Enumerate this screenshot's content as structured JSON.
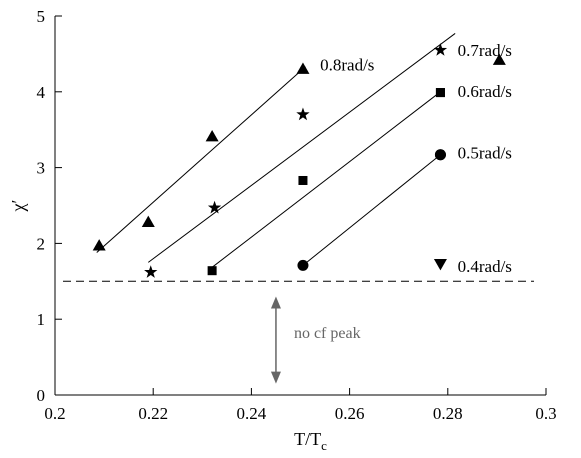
{
  "chart_data": {
    "type": "scatter",
    "xlabel_main": "T/T",
    "xlabel_sub": "c",
    "ylabel": "χ′",
    "xlim": [
      0.2,
      0.3
    ],
    "ylim": [
      0,
      5
    ],
    "xticks": [
      0.2,
      0.22,
      0.24,
      0.26,
      0.28,
      0.3
    ],
    "yticks": [
      0,
      1,
      2,
      3,
      4,
      5
    ],
    "xtick_labels": [
      "0.2",
      "0.22",
      "0.24",
      "0.26",
      "0.28",
      "0.3"
    ],
    "ytick_labels": [
      "0",
      "1",
      "2",
      "3",
      "4",
      "5"
    ],
    "grid": false,
    "threshold_line": {
      "y": 1.5,
      "style": "dashed"
    },
    "annotation": {
      "text": "no cf peak",
      "arrow_x": 0.245,
      "arrow_from_y": 1.3,
      "arrow_to_y": 0.15
    },
    "series": [
      {
        "name": "0.8rad/s",
        "marker": "triangle-up",
        "points": [
          [
            0.209,
            1.97
          ],
          [
            0.219,
            2.28
          ],
          [
            0.232,
            3.41
          ],
          [
            0.2505,
            4.3
          ]
        ],
        "fit": [
          [
            0.2085,
            1.88
          ],
          [
            0.251,
            4.33
          ]
        ],
        "legend_at": [
          0.2905,
          4.42
        ],
        "label_at": [
          0.254,
          4.36
        ]
      },
      {
        "name": "0.7rad/s",
        "marker": "star",
        "points": [
          [
            0.2195,
            1.62
          ],
          [
            0.2325,
            2.47
          ],
          [
            0.2505,
            3.7
          ]
        ],
        "fit": [
          [
            0.219,
            1.75
          ],
          [
            0.2815,
            4.77
          ]
        ],
        "legend_at": [
          0.2785,
          4.55
        ],
        "label_at": [
          0.282,
          4.55
        ]
      },
      {
        "name": "0.6rad/s",
        "marker": "square",
        "points": [
          [
            0.232,
            1.64
          ],
          [
            0.2505,
            2.83
          ],
          [
            0.2785,
            3.99
          ]
        ],
        "fit": [
          [
            0.2315,
            1.66
          ],
          [
            0.2785,
            4.0
          ]
        ],
        "legend_at": [
          0.2785,
          3.99
        ],
        "label_at": [
          0.282,
          4.01
        ]
      },
      {
        "name": "0.5rad/s",
        "marker": "circle",
        "points": [
          [
            0.2505,
            1.71
          ],
          [
            0.2785,
            3.17
          ]
        ],
        "fit": [
          [
            0.2505,
            1.71
          ],
          [
            0.2785,
            3.17
          ]
        ],
        "legend_at": [
          0.2785,
          3.17
        ],
        "label_at": [
          0.282,
          3.2
        ]
      },
      {
        "name": "0.4rad/s",
        "marker": "triangle-down",
        "points": [],
        "fit": null,
        "legend_at": [
          0.2785,
          1.73
        ],
        "label_at": [
          0.282,
          1.7
        ]
      }
    ]
  }
}
